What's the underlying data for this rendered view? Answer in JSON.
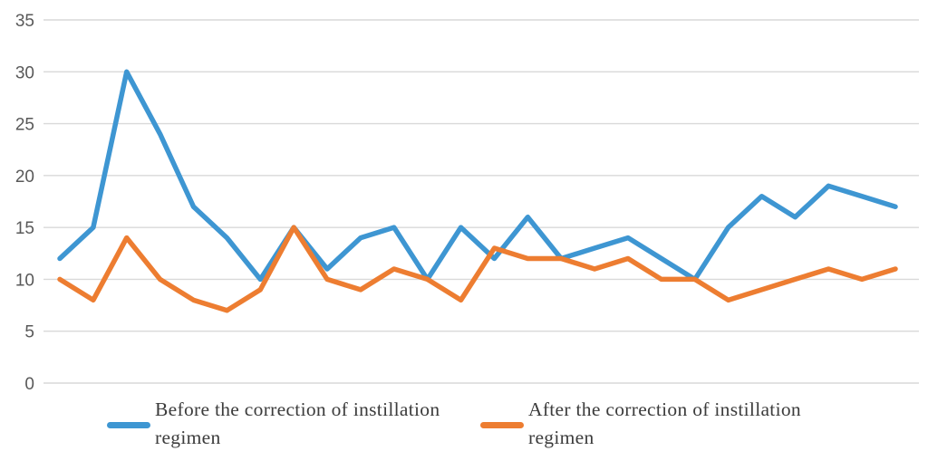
{
  "chart_data": {
    "type": "line",
    "x": [
      1,
      2,
      3,
      4,
      5,
      6,
      7,
      8,
      9,
      10,
      11,
      12,
      13,
      14,
      15,
      16,
      17,
      18,
      19,
      20,
      21,
      22,
      23,
      24,
      25,
      26
    ],
    "series": [
      {
        "key": "before",
        "name": "Before the correction of instillation regimen",
        "color": "#3E96D2",
        "values": [
          12,
          15,
          30,
          24,
          17,
          14,
          10,
          15,
          11,
          14,
          15,
          10,
          15,
          12,
          16,
          12,
          13,
          14,
          12,
          10,
          15,
          18,
          16,
          19,
          18,
          17
        ]
      },
      {
        "key": "after",
        "name": "After the correction of instillation regimen",
        "color": "#ED7D31",
        "values": [
          10,
          8,
          14,
          10,
          8,
          7,
          9,
          15,
          10,
          9,
          11,
          10,
          8,
          13,
          12,
          12,
          11,
          12,
          10,
          10,
          8,
          9,
          10,
          11,
          10,
          11
        ]
      }
    ],
    "title": "",
    "xlabel": "",
    "ylabel": "",
    "ylim": [
      0,
      35
    ],
    "y_ticks": [
      0,
      5,
      10,
      15,
      20,
      25,
      30,
      35
    ],
    "grid": true,
    "legend_position": "bottom"
  },
  "axis": {
    "tick_label_color": "#595959",
    "gridline_color": "#D9D9D9"
  },
  "legend": {
    "items": [
      {
        "key": "before",
        "color": "#3E96D2",
        "label_lines": [
          "Before the correction of instillation",
          "regimen"
        ]
      },
      {
        "key": "after",
        "color": "#ED7D31",
        "label_lines": [
          "After the correction of instillation",
          "regimen"
        ]
      }
    ]
  },
  "colors": {
    "background": "#FFFFFF"
  }
}
